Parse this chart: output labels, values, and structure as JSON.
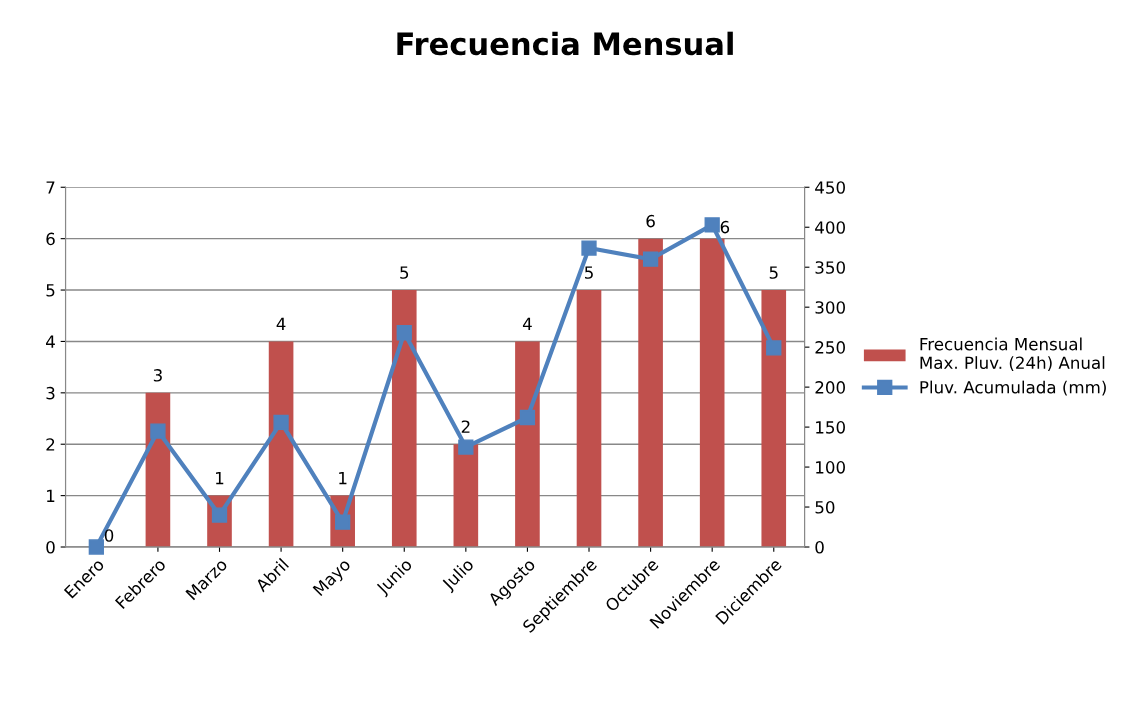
{
  "chart_data": {
    "type": "bar",
    "title": "Frecuencia Mensual",
    "categories": [
      "Enero",
      "Febrero",
      "Marzo",
      "Abril",
      "Mayo",
      "Junio",
      "Julio",
      "Agosto",
      "Septiembre",
      "Octubre",
      "Noviembre",
      "Diciembre"
    ],
    "series": [
      {
        "name": "Frecuencia Mensual\nMax. Pluv. (24h) Anual",
        "color": "#c0504d",
        "values": [
          0,
          3,
          1,
          4,
          1,
          5,
          2,
          4,
          5,
          6,
          6,
          5
        ],
        "value_labels": [
          "0",
          "3",
          "1",
          "4",
          "1",
          "5",
          "2",
          "4",
          "5",
          "6",
          "6",
          "5"
        ]
      },
      {
        "name": "Pluv. Acumulada (mm)",
        "type": "line",
        "axis": "y2",
        "color": "#4f81bd",
        "marker": "square",
        "line_style": "solid",
        "values": [
          0,
          145,
          40,
          156,
          31,
          268,
          125,
          162,
          374,
          360,
          403,
          249
        ]
      }
    ],
    "ylim": [
      0,
      7
    ],
    "yticks": [
      0,
      1,
      2,
      3,
      4,
      5,
      6,
      7
    ],
    "y2lim": [
      0,
      450
    ],
    "y2ticks": [
      0,
      50,
      100,
      150,
      200,
      250,
      300,
      350,
      400,
      450
    ],
    "grid": "y",
    "legend": "right"
  }
}
